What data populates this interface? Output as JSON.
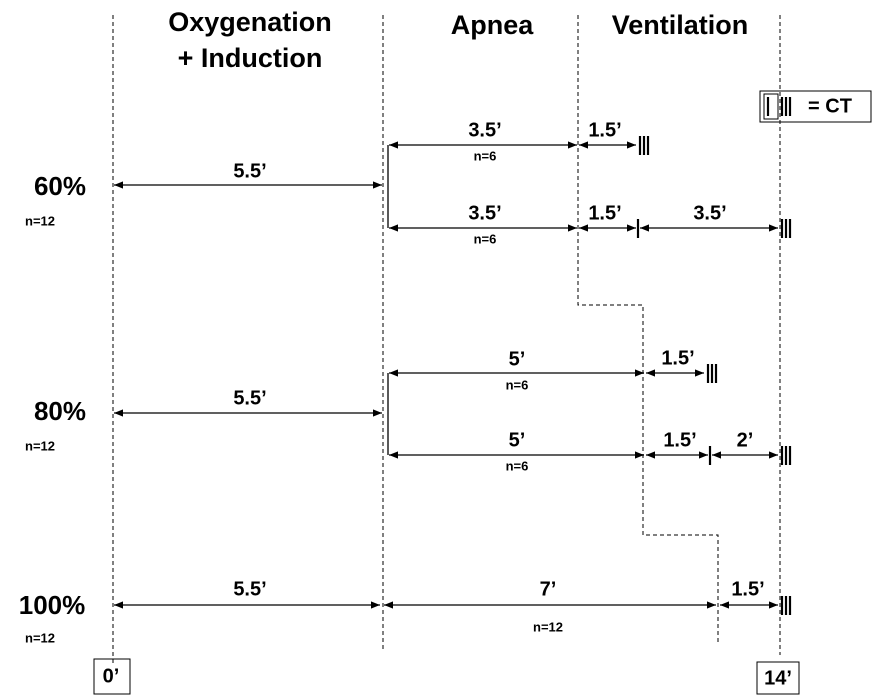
{
  "header": {
    "phases": [
      {
        "line1": "Oxygenation",
        "line2": "+ Induction"
      },
      {
        "line1": "Apnea"
      },
      {
        "line1": "Ventilation"
      }
    ]
  },
  "legend": "= CT",
  "groups": [
    {
      "label": "60%",
      "n": "n=12",
      "induction": "5.5’",
      "arms": [
        {
          "apnea": "3.5’",
          "n": "n=6",
          "ventilation": [
            "1.5’"
          ]
        },
        {
          "apnea": "3.5’",
          "n": "n=6",
          "ventilation": [
            "1.5’",
            "3.5’"
          ]
        }
      ]
    },
    {
      "label": "80%",
      "n": "n=12",
      "induction": "5.5’",
      "arms": [
        {
          "apnea": "5’",
          "n": "n=6",
          "ventilation": [
            "1.5’"
          ]
        },
        {
          "apnea": "5’",
          "n": "n=6",
          "ventilation": [
            "1.5’",
            "2’"
          ]
        }
      ]
    },
    {
      "label": "100%",
      "n": "n=12",
      "induction": "5.5’",
      "arms": [
        {
          "apnea": "7’",
          "n": "n=12",
          "ventilation": [
            "1.5’"
          ]
        }
      ]
    }
  ],
  "timeline": {
    "start": "0’",
    "end": "14’"
  }
}
